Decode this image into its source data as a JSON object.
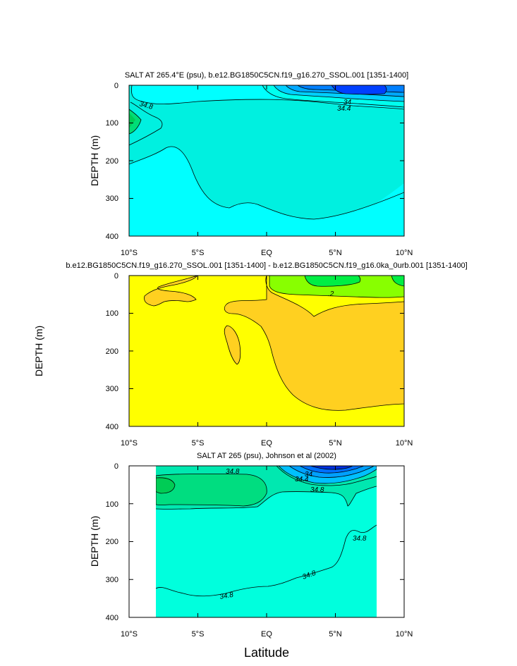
{
  "xlabel": "Latitude",
  "x_ticks": [
    "10°S",
    "5°S",
    "EQ",
    "5°N",
    "10°N"
  ],
  "chart_data": [
    {
      "type": "contour",
      "title": "SALT AT 265.4°E (psu), b.e12.BG1850C5CN.f19_g16.270_SSOL.001 [1351-1400]",
      "xlabel": "",
      "ylabel": "DEPTH (m)",
      "xlim": [
        -10,
        10
      ],
      "ylim": [
        400,
        0
      ],
      "y_ticks": [
        "0",
        "100",
        "200",
        "300",
        "400"
      ],
      "contour_labels": [
        "34.8",
        "34",
        "34.4"
      ],
      "fill_colors": [
        "#00ffff",
        "#00f0e0",
        "#00e0a8",
        "#00cc66",
        "#00a8ff",
        "#0080ff",
        "#0050ff",
        "#2020e0"
      ]
    },
    {
      "type": "contour",
      "title": "b.e12.BG1850C5CN.f19_g16.270_SSOL.001 [1351-1400] - b.e12.BG1850C5CN.f19_g16.0ka_0urb.001 [1351-1400]",
      "xlabel": "",
      "ylabel": "DEPTH (m)",
      "xlim": [
        -10,
        10
      ],
      "ylim": [
        400,
        0
      ],
      "y_ticks": [
        "0",
        "100",
        "200",
        "300",
        "400"
      ],
      "contour_labels": [
        ".2"
      ],
      "fill_colors": [
        "#ffff00",
        "#ffd820",
        "#80ff00",
        "#00ff40",
        "#00e0a0"
      ]
    },
    {
      "type": "contour",
      "title": "SALT AT 265 (psu), Johnson et al (2002)",
      "xlabel": "Latitude",
      "ylabel": "DEPTH (m)",
      "xlim": [
        -10,
        10
      ],
      "ylim": [
        400,
        0
      ],
      "data_extent_lat": [
        -8,
        8
      ],
      "y_ticks": [
        "0",
        "100",
        "200",
        "300",
        "400"
      ],
      "contour_labels": [
        "34.8",
        "34",
        "34.4",
        "34.8",
        "34.8",
        "34.8",
        "34.8"
      ],
      "fill_colors": [
        "#00ffdd",
        "#00e8b0",
        "#00dd80",
        "#00a8ff",
        "#0060ff",
        "#0010d0"
      ]
    }
  ]
}
